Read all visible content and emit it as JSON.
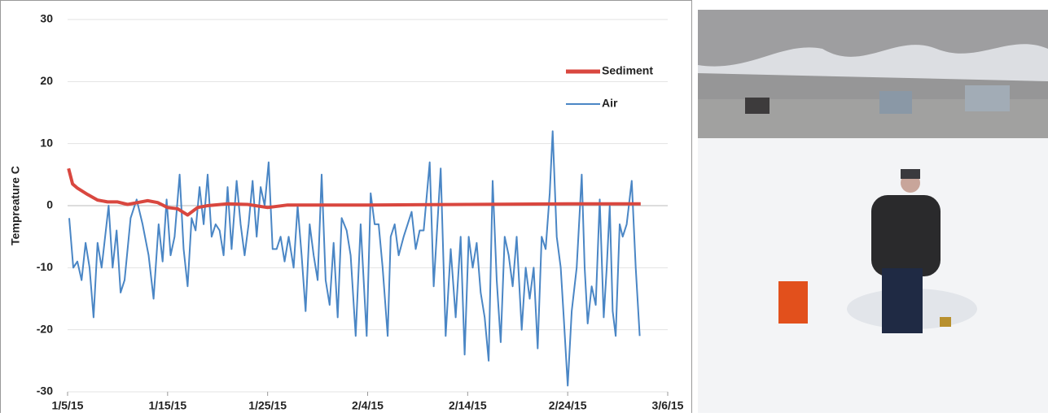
{
  "chart_data": {
    "type": "line",
    "ylabel": "Tempreature C",
    "xlim": [
      0,
      60
    ],
    "xticks": [
      {
        "value": 0,
        "label": "1/5/15"
      },
      {
        "value": 10,
        "label": "1/15/15"
      },
      {
        "value": 20,
        "label": "1/25/15"
      },
      {
        "value": 30,
        "label": "2/4/15"
      },
      {
        "value": 40,
        "label": "2/14/15"
      },
      {
        "value": 50,
        "label": "2/24/15"
      },
      {
        "value": 60,
        "label": "3/6/15"
      }
    ],
    "ylim": [
      -30,
      30
    ],
    "yticks": [
      -30,
      -20,
      -10,
      0,
      10,
      20,
      30
    ],
    "grid": true,
    "legend": "upper right",
    "series": [
      {
        "name": "Sediment",
        "color": "#d9473f",
        "x": [
          0.1,
          0.5,
          1,
          2,
          3,
          4,
          5,
          6,
          7,
          8,
          9,
          10,
          11,
          12,
          13,
          14,
          16,
          18,
          20,
          22,
          25,
          30,
          40,
          50,
          57.3
        ],
        "values": [
          6,
          3.5,
          2.8,
          1.8,
          0.9,
          0.6,
          0.6,
          0.2,
          0.5,
          0.8,
          0.5,
          -0.3,
          -0.5,
          -1.5,
          -0.3,
          0,
          0.3,
          0.2,
          -0.3,
          0.1,
          0.1,
          0.1,
          0.2,
          0.3,
          0.3
        ]
      },
      {
        "name": "Air",
        "color": "#4a86c5",
        "x": [
          0.16,
          0.57,
          0.98,
          1.4,
          1.8,
          2.2,
          2.6,
          3.0,
          3.4,
          4.1,
          4.5,
          4.9,
          5.3,
          5.7,
          6.3,
          6.9,
          7.5,
          8.1,
          8.6,
          9.1,
          9.5,
          9.9,
          10.3,
          10.7,
          11.2,
          11.6,
          12.0,
          12.4,
          12.8,
          13.2,
          13.6,
          14.0,
          14.4,
          14.8,
          15.2,
          15.6,
          16.0,
          16.4,
          16.9,
          17.3,
          17.7,
          18.1,
          18.5,
          18.9,
          19.3,
          19.7,
          20.1,
          20.5,
          20.9,
          21.3,
          21.7,
          22.1,
          22.6,
          23.0,
          23.4,
          23.8,
          24.2,
          24.6,
          25.0,
          25.4,
          25.8,
          26.2,
          26.6,
          27.0,
          27.4,
          27.9,
          28.3,
          28.8,
          29.3,
          29.9,
          30.3,
          30.7,
          31.1,
          31.5,
          32.0,
          32.3,
          32.7,
          33.1,
          33.6,
          34.0,
          34.4,
          34.8,
          35.2,
          35.6,
          36.2,
          36.6,
          37.3,
          37.8,
          38.3,
          38.8,
          39.3,
          39.7,
          40.1,
          40.5,
          40.9,
          41.3,
          41.7,
          42.1,
          42.5,
          42.9,
          43.3,
          43.7,
          44.1,
          44.5,
          44.9,
          45.4,
          45.8,
          46.2,
          46.6,
          47.0,
          47.4,
          47.8,
          48.2,
          48.5,
          48.9,
          49.3,
          49.6,
          50.0,
          50.4,
          50.9,
          51.4,
          51.7,
          52.0,
          52.4,
          52.8,
          53.2,
          53.6,
          53.9,
          54.2,
          54.5,
          54.8,
          55.2,
          55.5,
          55.9,
          56.4,
          56.8,
          57.2
        ],
        "values": [
          -2,
          -10,
          -9,
          -12,
          -6,
          -10,
          -18,
          -6,
          -10,
          0,
          -10,
          -4,
          -14,
          -12,
          -2,
          1,
          -3,
          -8,
          -15,
          -3,
          -9,
          1,
          -8,
          -5,
          5,
          -7,
          -13,
          -2,
          -4,
          3,
          -3,
          5,
          -5,
          -3,
          -4,
          -8,
          3,
          -7,
          4,
          -3,
          -8,
          -3,
          4,
          -5,
          3,
          0,
          7,
          -7,
          -7,
          -5,
          -9,
          -5,
          -10,
          0,
          -8,
          -17,
          -3,
          -8,
          -12,
          5,
          -12,
          -16,
          -6,
          -18,
          -2,
          -4,
          -8,
          -21,
          -3,
          -21,
          2,
          -3,
          -3,
          -10,
          -21,
          -5,
          -3,
          -8,
          -5,
          -3,
          -1,
          -7,
          -4,
          -4,
          7,
          -13,
          6,
          -21,
          -7,
          -18,
          -5,
          -24,
          -5,
          -10,
          -6,
          -14,
          -18,
          -25,
          4,
          -12,
          -22,
          -5,
          -8,
          -13,
          -5,
          -20,
          -10,
          -15,
          -10,
          -23,
          -5,
          -7,
          2,
          12,
          -5,
          -10,
          -18,
          -29,
          -17,
          -10,
          5,
          -10,
          -19,
          -13,
          -16,
          1,
          -18,
          -10,
          0,
          -17,
          -21,
          -3,
          -5,
          -3,
          4,
          -10,
          -21
        ]
      }
    ]
  }
}
